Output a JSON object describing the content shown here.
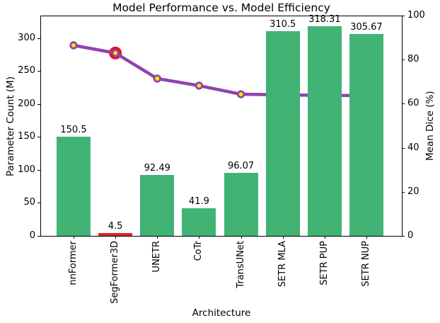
{
  "colors": {
    "background": "#ffffff",
    "text": "#000000",
    "axis": "#000000",
    "bar": "#41b375",
    "bar_highlight": "#d62728",
    "line": "#8e44ad",
    "marker_fill": "#ffe600",
    "marker_edge": "#8e44ad",
    "highlight_ring": "#ee1111"
  },
  "chart_data": {
    "type": "bar+line dual-axis",
    "title": "Model Performance vs. Model Efficiency",
    "xlabel": "Architecture",
    "ylabel_left": "Parameter Count (M)",
    "ylabel_right": "Mean Dice (%)",
    "categories": [
      "nnFormer",
      "SegFormer3D",
      "UNETR",
      "CoTr",
      "TransUNet",
      "SETR MLA",
      "SETR PUP",
      "SETR NUP"
    ],
    "series": [
      {
        "name": "Parameter Count (M)",
        "type": "bar",
        "axis": "left",
        "values": [
          150.5,
          4.5,
          92.49,
          41.9,
          96.07,
          310.5,
          318.31,
          305.67
        ],
        "value_labels": [
          "150.5",
          "4.5",
          "92.49",
          "41.9",
          "96.07",
          "310.5",
          "318.31",
          "305.67"
        ],
        "highlight_index": 1
      },
      {
        "name": "Mean Dice (%)",
        "type": "line",
        "axis": "right",
        "values": [
          86.5,
          83.0,
          71.4,
          68.2,
          64.3,
          64.0,
          63.8,
          63.7
        ],
        "highlight_index": 1
      }
    ],
    "ylim_left": [
      0,
      334
    ],
    "ylim_right": [
      0,
      100
    ],
    "yticks_left": [
      0,
      50,
      100,
      150,
      200,
      250,
      300
    ],
    "yticks_right": [
      0,
      20,
      40,
      60,
      80,
      100
    ],
    "grid": false,
    "legend": "none"
  }
}
